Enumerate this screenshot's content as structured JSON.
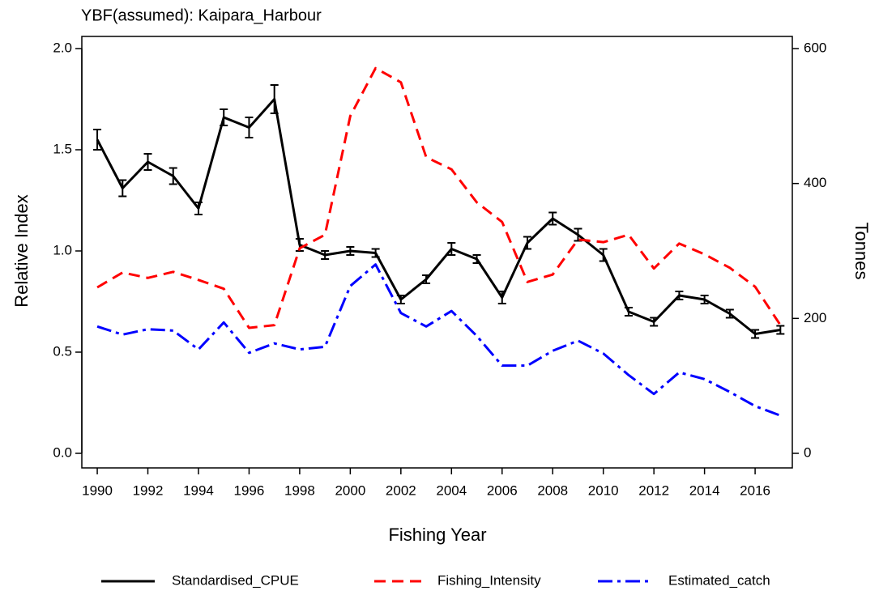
{
  "chart_data": {
    "type": "line",
    "title": "YBF(assumed): Kaipara_Harbour",
    "x_label": "Fishing Year",
    "y_label": "Relative Index",
    "y2_label": "Tonnes",
    "x": [
      1990,
      1991,
      1992,
      1993,
      1994,
      1995,
      1996,
      1997,
      1998,
      1999,
      2000,
      2001,
      2002,
      2003,
      2004,
      2005,
      2006,
      2007,
      2008,
      2009,
      2010,
      2011,
      2012,
      2013,
      2014,
      2015,
      2016,
      2017
    ],
    "xlim": [
      1989.39,
      2017.47
    ],
    "xticks": [
      1990,
      1992,
      1994,
      1996,
      1998,
      2000,
      2002,
      2004,
      2006,
      2008,
      2010,
      2012,
      2014,
      2016
    ],
    "ylim": [
      -0.072,
      2.06
    ],
    "yticks": [
      {
        "value": 0,
        "label": "0.0"
      },
      {
        "value": 0.5,
        "label": "0.5"
      },
      {
        "value": 1,
        "label": "1.0"
      },
      {
        "value": 1.5,
        "label": "1.5"
      },
      {
        "value": 2,
        "label": "2.0"
      }
    ],
    "y2lim": [
      -21.6,
      618
    ],
    "y2ticks": [
      0,
      200,
      400,
      600
    ],
    "legend": "bottom",
    "series": [
      {
        "name": "Standardised_CPUE",
        "color": "#000000",
        "linestyle": "solid",
        "values": [
          1.55,
          1.31,
          1.44,
          1.37,
          1.21,
          1.66,
          1.61,
          1.75,
          1.03,
          0.98,
          1.0,
          0.99,
          0.76,
          0.86,
          1.01,
          0.96,
          0.77,
          1.04,
          1.16,
          1.08,
          0.98,
          0.7,
          0.65,
          0.78,
          0.76,
          0.69,
          0.59,
          0.61
        ],
        "errors": [
          0.05,
          0.04,
          0.04,
          0.04,
          0.03,
          0.04,
          0.05,
          0.07,
          0.03,
          0.02,
          0.02,
          0.02,
          0.02,
          0.02,
          0.03,
          0.02,
          0.03,
          0.03,
          0.03,
          0.03,
          0.03,
          0.02,
          0.02,
          0.02,
          0.02,
          0.02,
          0.02,
          0.02
        ]
      },
      {
        "name": "Fishing_Intensity",
        "color": "#ff0000",
        "linestyle": "dashed",
        "axis": "y2",
        "values": [
          246,
          268,
          260,
          269,
          257,
          244,
          186,
          190,
          304,
          324,
          500,
          571,
          550,
          439,
          421,
          372,
          343,
          254,
          265,
          317,
          313,
          324,
          274,
          311,
          295,
          275,
          247,
          190
        ]
      },
      {
        "name": "Estimated_catch",
        "color": "#0000ff",
        "linestyle": "dashdot",
        "axis": "y2",
        "values": [
          188,
          176,
          184,
          182,
          154,
          194,
          149,
          163,
          154,
          158,
          248,
          280,
          208,
          188,
          211,
          174,
          130,
          130,
          152,
          167,
          148,
          116,
          88,
          120,
          110,
          91,
          70,
          56
        ]
      }
    ]
  }
}
